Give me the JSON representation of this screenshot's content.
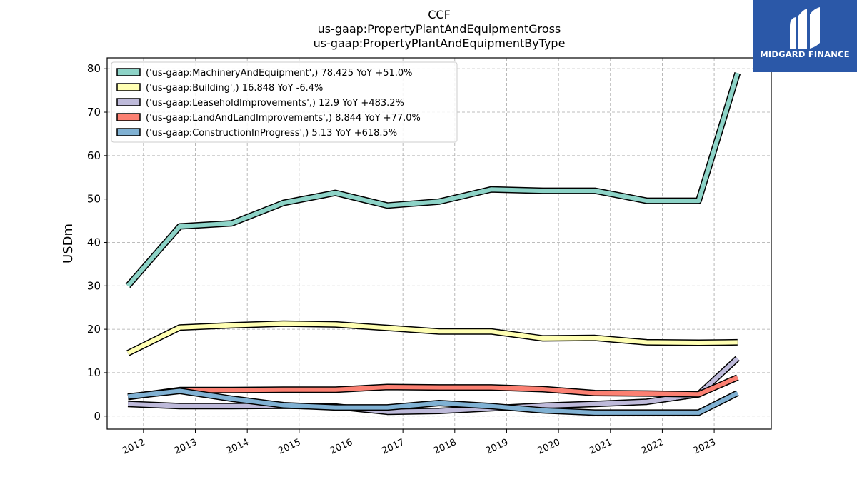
{
  "brand": {
    "name": "MIDGARD FINANCE",
    "bg_color": "#2b58a8"
  },
  "chart_data": {
    "type": "line",
    "title_lines": [
      "CCF",
      "us-gaap:PropertyPlantAndEquipmentGross",
      "us-gaap:PropertyPlantAndEquipmentByType"
    ],
    "xlabel": "",
    "ylabel": "USDm",
    "ylim": [
      -3,
      82.5
    ],
    "xlim": [
      2011.3,
      2024.1
    ],
    "yticks": [
      0,
      10,
      20,
      30,
      40,
      50,
      60,
      70,
      80
    ],
    "xticks": [
      2012,
      2013,
      2014,
      2015,
      2016,
      2017,
      2018,
      2019,
      2020,
      2021,
      2022,
      2023
    ],
    "x": [
      2011.7,
      2012.7,
      2013.7,
      2014.7,
      2015.7,
      2016.7,
      2017.7,
      2018.7,
      2019.7,
      2020.7,
      2021.7,
      2022.7,
      2023.45
    ],
    "grid": true,
    "legend_position": "top-left",
    "series": [
      {
        "name": "('us-gaap:MachineryAndEquipment',) 78.425 YoY +51.0%",
        "color": "#8dd3c7",
        "values": [
          30.0,
          43.7,
          44.4,
          49.1,
          51.4,
          48.5,
          49.4,
          52.2,
          51.9,
          51.9,
          49.6,
          49.6,
          79.0
        ]
      },
      {
        "name": "('us-gaap:Building',) 16.848 YoY -6.4%",
        "color": "#ffffb3",
        "values": [
          14.5,
          20.4,
          20.9,
          21.3,
          21.1,
          20.3,
          19.5,
          19.5,
          17.9,
          18.0,
          17.0,
          16.9,
          17.0
        ]
      },
      {
        "name": "('us-gaap:LeaseholdImprovements',) 12.9 YoY +483.2%",
        "color": "#bebada",
        "values": [
          2.8,
          2.3,
          2.3,
          2.4,
          2.2,
          1.0,
          1.2,
          1.8,
          2.4,
          2.8,
          3.3,
          5.0,
          13.3
        ]
      },
      {
        "name": "('us-gaap:LandAndLandImprovements',) 8.844 YoY +77.0%",
        "color": "#fb8072",
        "values": [
          4.4,
          6.0,
          6.0,
          6.1,
          6.1,
          6.7,
          6.6,
          6.6,
          6.2,
          5.3,
          5.2,
          5.0,
          8.9
        ]
      },
      {
        "name": "('us-gaap:ConstructionInProgress',) 5.13 YoY +618.5%",
        "color": "#80b1d3",
        "values": [
          4.5,
          5.8,
          4.0,
          2.5,
          2.0,
          2.0,
          3.0,
          2.3,
          1.3,
          0.8,
          0.8,
          0.8,
          5.3
        ]
      }
    ]
  }
}
